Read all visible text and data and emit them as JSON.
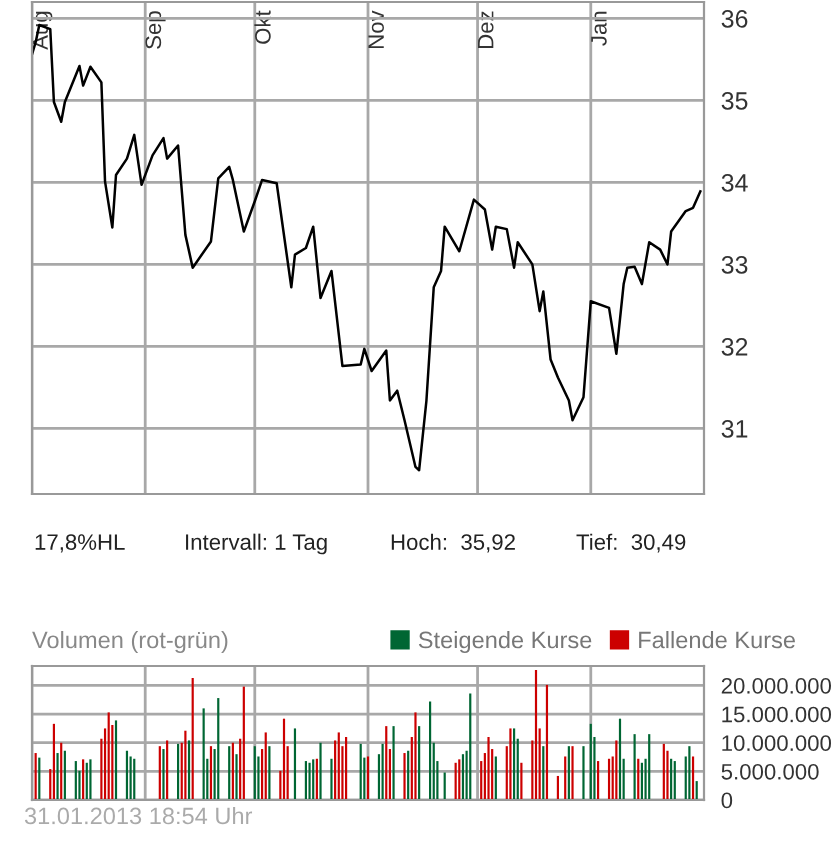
{
  "chart_data": [
    {
      "type": "line",
      "xlim": [
        "2012-08-01",
        "2013-02-01"
      ],
      "ylim": [
        30.2,
        36.2
      ],
      "yticks": [
        31,
        32,
        33,
        34,
        35,
        36
      ],
      "xticks": [
        {
          "value": "2012-08-01",
          "label": "Aug"
        },
        {
          "value": "2012-09-01",
          "label": "Sep"
        },
        {
          "value": "2012-10-01",
          "label": "Okt"
        },
        {
          "value": "2012-11-01",
          "label": "Nov"
        },
        {
          "value": "2012-12-01",
          "label": "Dez"
        },
        {
          "value": "2013-01-01",
          "label": "Jan"
        }
      ],
      "grid": true,
      "marker": "none",
      "line_style": "solid",
      "annotations": [
        "17,8%HL",
        "Intervall: 1 Tag",
        "Hoch:  35,92",
        "Tief:  30,49"
      ],
      "series": [
        {
          "color": "#000000",
          "x": [
            "2012-08-01",
            "2012-08-02",
            "2012-08-03",
            "2012-08-06",
            "2012-08-07",
            "2012-08-09",
            "2012-08-10",
            "2012-08-14",
            "2012-08-15",
            "2012-08-17",
            "2012-08-20",
            "2012-08-21",
            "2012-08-23",
            "2012-08-24",
            "2012-08-27",
            "2012-08-29",
            "2012-08-31",
            "2012-09-03",
            "2012-09-06",
            "2012-09-07",
            "2012-09-10",
            "2012-09-12",
            "2012-09-14",
            "2012-09-19",
            "2012-09-21",
            "2012-09-24",
            "2012-09-25",
            "2012-09-28",
            "2012-10-01",
            "2012-10-03",
            "2012-10-07",
            "2012-10-11",
            "2012-10-12",
            "2012-10-15",
            "2012-10-17",
            "2012-10-19",
            "2012-10-22",
            "2012-10-25",
            "2012-10-30",
            "2012-10-31",
            "2012-11-02",
            "2012-11-06",
            "2012-11-07",
            "2012-11-09",
            "2012-11-11",
            "2012-11-14",
            "2012-11-15",
            "2012-11-17",
            "2012-11-19",
            "2012-11-21",
            "2012-11-22",
            "2012-11-26",
            "2012-11-30",
            "2012-12-03",
            "2012-12-05",
            "2012-12-06",
            "2012-12-09",
            "2012-12-11",
            "2012-12-12",
            "2012-12-16",
            "2012-12-18",
            "2012-12-19",
            "2012-12-21",
            "2012-12-23",
            "2012-12-26",
            "2012-12-27",
            "2012-12-30",
            "2013-01-01",
            "2013-01-06",
            "2013-01-08",
            "2013-01-10",
            "2013-01-11",
            "2013-01-13",
            "2013-01-15",
            "2013-01-17",
            "2013-01-20",
            "2013-01-22",
            "2013-01-23",
            "2013-01-27",
            "2013-01-29",
            "2013-01-31"
          ],
          "values": [
            35.56,
            35.71,
            35.92,
            35.87,
            34.98,
            34.74,
            34.98,
            35.42,
            35.18,
            35.41,
            35.22,
            34.01,
            33.45,
            34.09,
            34.29,
            34.58,
            33.97,
            34.33,
            34.54,
            34.29,
            34.45,
            33.36,
            32.96,
            33.28,
            34.05,
            34.19,
            34.03,
            33.4,
            33.77,
            34.03,
            33.99,
            32.72,
            33.12,
            33.2,
            33.46,
            32.59,
            32.92,
            31.76,
            31.78,
            31.97,
            31.7,
            31.95,
            31.34,
            31.46,
            31.1,
            30.53,
            30.49,
            31.34,
            32.72,
            32.92,
            33.46,
            33.16,
            33.79,
            33.67,
            33.18,
            33.46,
            33.43,
            32.96,
            33.27,
            33.0,
            32.43,
            32.67,
            31.84,
            31.62,
            31.34,
            31.1,
            31.38,
            32.55,
            32.47,
            31.91,
            32.76,
            32.96,
            32.97,
            32.76,
            33.27,
            33.18,
            33.0,
            33.4,
            33.65,
            33.69,
            33.89
          ]
        }
      ]
    },
    {
      "type": "bar",
      "title": "Volumen (rot-grün)",
      "legend": "top right",
      "grid": true,
      "tick_labels": "y",
      "xlim": [
        "2012-08-01",
        "2013-02-01"
      ],
      "ylim": [
        0,
        23400000
      ],
      "xticks": [
        {
          "value": "2012-08-01",
          "label": null
        },
        {
          "value": "2012-09-01",
          "label": null
        },
        {
          "value": "2012-10-01",
          "label": null
        },
        {
          "value": "2012-11-01",
          "label": null
        },
        {
          "value": "2012-12-01",
          "label": null
        },
        {
          "value": "2013-01-01",
          "label": null
        }
      ],
      "yticks": [
        0,
        {
          "value": 5000000,
          "label": "5.000.000"
        },
        {
          "value": 10000000,
          "label": "10.000.000"
        },
        {
          "value": 15000000,
          "label": "15.000.000"
        },
        {
          "value": 20000000,
          "label": "20.000.000"
        }
      ],
      "annotations": [
        "31.01.2013 18:54 Uhr"
      ],
      "series": [
        {
          "name": "Steigende Kurse",
          "color": "#006633",
          "x": [
            "2012-08-03",
            "2012-08-08",
            "2012-08-10",
            "2012-08-13",
            "2012-08-14",
            "2012-08-16",
            "2012-08-17",
            "2012-08-24",
            "2012-08-27",
            "2012-08-28",
            "2012-08-29",
            "2012-09-03",
            "2012-09-06",
            "2012-09-10",
            "2012-09-13",
            "2012-09-17",
            "2012-09-18",
            "2012-09-20",
            "2012-09-21",
            "2012-09-24",
            "2012-09-26",
            "2012-10-01",
            "2012-10-02",
            "2012-10-05",
            "2012-10-12",
            "2012-10-15",
            "2012-10-16",
            "2012-10-17",
            "2012-10-19",
            "2012-10-22",
            "2012-10-30",
            "2012-10-31",
            "2012-11-04",
            "2012-11-05",
            "2012-11-08",
            "2012-11-12",
            "2012-11-15",
            "2012-11-18",
            "2012-11-19",
            "2012-11-20",
            "2012-11-22",
            "2012-11-27",
            "2012-11-28",
            "2012-11-29",
            "2012-12-06",
            "2012-12-11",
            "2012-12-12",
            "2012-12-19",
            "2012-12-26",
            "2012-12-30",
            "2013-01-01",
            "2013-01-02",
            "2013-01-09",
            "2013-01-10",
            "2013-01-13",
            "2013-01-15",
            "2013-01-16",
            "2013-01-17",
            "2013-01-23",
            "2013-01-24",
            "2013-01-27",
            "2013-01-28",
            "2013-01-30"
          ],
          "values": [
            7400000,
            8200000,
            8600000,
            6800000,
            5100000,
            6500000,
            7100000,
            13900000,
            8600000,
            7600000,
            7200000,
            null,
            8900000,
            9800000,
            10400000,
            16000000,
            7200000,
            8900000,
            17800000,
            9400000,
            8000000,
            9400000,
            7600000,
            9400000,
            12500000,
            6800000,
            6500000,
            7100000,
            10000000,
            7200000,
            9800000,
            7400000,
            8000000,
            9800000,
            12900000,
            8600000,
            12900000,
            17200000,
            10000000,
            6800000,
            4800000,
            8000000,
            8600000,
            18600000,
            7600000,
            12500000,
            10700000,
            9400000,
            9400000,
            9400000,
            13300000,
            11000000,
            14200000,
            7200000,
            11500000,
            6500000,
            7200000,
            11500000,
            7200000,
            6800000,
            7600000,
            9400000,
            3300000
          ]
        },
        {
          "name": "Fallende Kurse",
          "color": "#cc0000",
          "x": [
            "2012-08-02",
            "2012-08-06",
            "2012-08-07",
            "2012-08-09",
            "2012-08-15",
            "2012-08-20",
            "2012-08-21",
            "2012-08-22",
            "2012-08-23",
            "2012-08-30",
            "2012-08-31",
            "2012-09-05",
            "2012-09-07",
            "2012-09-11",
            "2012-09-12",
            "2012-09-14",
            "2012-09-19",
            "2012-09-25",
            "2012-09-27",
            "2012-09-28",
            "2012-10-03",
            "2012-10-04",
            "2012-10-08",
            "2012-10-09",
            "2012-10-10",
            "2012-10-11",
            "2012-10-18",
            "2012-10-23",
            "2012-10-24",
            "2012-10-25",
            "2012-10-26",
            "2012-11-01",
            "2012-11-06",
            "2012-11-07",
            "2012-11-11",
            "2012-11-13",
            "2012-11-14",
            "2012-11-25",
            "2012-11-26",
            "2012-12-02",
            "2012-12-03",
            "2012-12-04",
            "2012-12-05",
            "2012-12-09",
            "2012-12-10",
            "2012-12-13",
            "2012-12-16",
            "2012-12-17",
            "2012-12-18",
            "2012-12-20",
            "2012-12-23",
            "2012-12-25",
            "2012-12-27",
            "2013-01-03",
            "2013-01-06",
            "2013-01-07",
            "2013-01-08",
            "2013-01-14",
            "2013-01-21",
            "2013-01-22",
            "2013-01-29"
          ],
          "values": [
            8200000,
            5400000,
            13300000,
            10000000,
            7100000,
            10700000,
            12500000,
            15300000,
            13100000,
            null,
            null,
            9400000,
            10400000,
            10000000,
            12100000,
            21300000,
            9400000,
            10000000,
            10700000,
            19800000,
            8900000,
            11800000,
            5100000,
            14200000,
            9400000,
            null,
            7200000,
            10400000,
            11800000,
            9400000,
            11000000,
            7600000,
            12900000,
            8900000,
            8200000,
            11000000,
            15300000,
            6500000,
            7100000,
            6800000,
            8200000,
            11000000,
            8900000,
            9400000,
            12500000,
            6500000,
            10400000,
            22700000,
            12500000,
            20100000,
            4200000,
            7600000,
            9400000,
            6800000,
            7200000,
            7600000,
            10400000,
            7200000,
            9800000,
            8600000,
            7600000
          ]
        }
      ]
    }
  ]
}
